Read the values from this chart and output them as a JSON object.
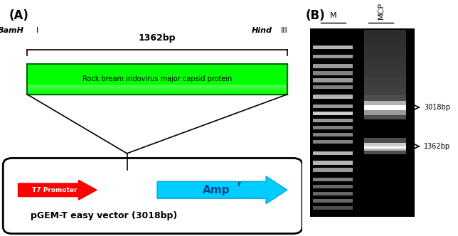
{
  "panel_A_label": "(A)",
  "panel_B_label": "(B)",
  "bamh_label": "BamH I",
  "hind_label": "Hind III",
  "size_label": "1362bp",
  "mcp_text": "Rock bream iridovirus major capsid protein",
  "t7_text": "T7 Promoter",
  "ampr_text": "Amp",
  "ampr_sup": "r",
  "vector_text": "pGEM-T easy vector (3018bp)",
  "lane_M": "M",
  "lane_MCP": "MCP",
  "band1_label": "3018bp",
  "band2_label": "1362bp",
  "green_box_color": "#00dd00",
  "green_box_edge": "#009900",
  "red_arrow_color": "#ff0000",
  "cyan_arrow_color": "#00ccff",
  "vector_box_color": "#ffffff",
  "vector_box_edge": "#000000",
  "bg_color": "#ffffff"
}
